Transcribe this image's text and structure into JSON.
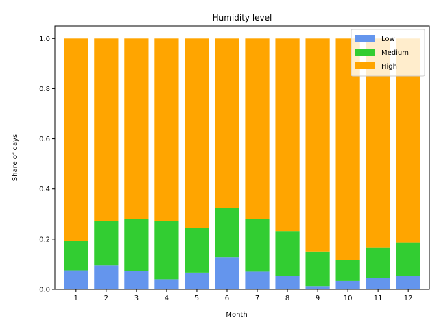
{
  "chart_data": {
    "type": "bar",
    "stacked": true,
    "title": "Humidity level",
    "xlabel": "Month",
    "ylabel": "Share of days",
    "categories": [
      "1",
      "2",
      "3",
      "4",
      "5",
      "6",
      "7",
      "8",
      "9",
      "10",
      "11",
      "12"
    ],
    "ylim": [
      0,
      1.05
    ],
    "yticks": [
      "0.0",
      "0.2",
      "0.4",
      "0.6",
      "0.8",
      "1.0"
    ],
    "legend_position": "top-right",
    "grid": false,
    "series": [
      {
        "name": "Low",
        "color": "#6495ED",
        "values": [
          0.075,
          0.095,
          0.072,
          0.04,
          0.066,
          0.128,
          0.07,
          0.054,
          0.013,
          0.033,
          0.046,
          0.054
        ]
      },
      {
        "name": "Medium",
        "color": "#32CD32",
        "values": [
          0.117,
          0.177,
          0.208,
          0.233,
          0.178,
          0.195,
          0.211,
          0.178,
          0.138,
          0.082,
          0.119,
          0.133
        ]
      },
      {
        "name": "High",
        "color": "#FFA500",
        "values": [
          0.808,
          0.728,
          0.72,
          0.727,
          0.756,
          0.677,
          0.719,
          0.768,
          0.849,
          0.885,
          0.835,
          0.813
        ]
      }
    ]
  }
}
